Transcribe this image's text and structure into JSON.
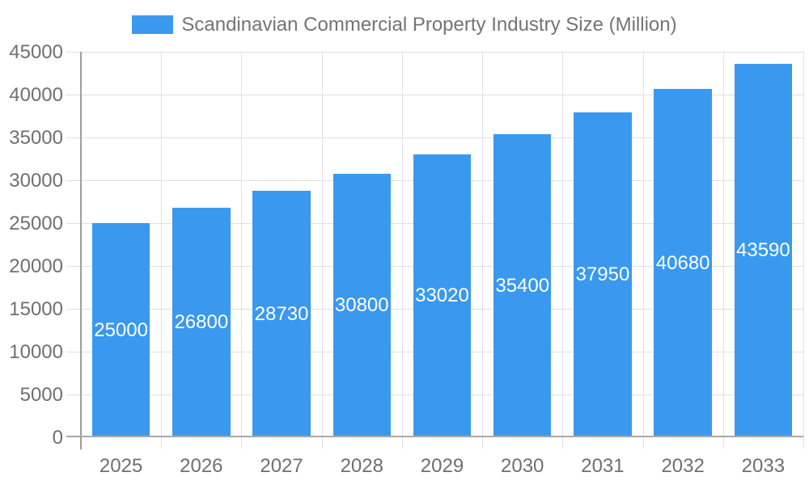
{
  "legend": {
    "label": "Scandinavian Commercial Property Industry Size (Million)"
  },
  "chart_data": {
    "type": "bar",
    "title": "Scandinavian Commercial Property Industry Size (Million)",
    "categories": [
      "2025",
      "2026",
      "2027",
      "2028",
      "2029",
      "2030",
      "2031",
      "2032",
      "2033"
    ],
    "values": [
      25000,
      26800,
      28730,
      30800,
      33020,
      35400,
      37950,
      40680,
      43590
    ],
    "series_name": "Scandinavian Commercial Property Industry Size (Million)",
    "xlabel": "",
    "ylabel": "",
    "ylim": [
      0,
      45000
    ],
    "ytick_step": 5000,
    "ytick_labels": [
      "0",
      "5000",
      "10000",
      "15000",
      "20000",
      "25000",
      "30000",
      "35000",
      "40000",
      "45000"
    ],
    "grid": true,
    "legend_position": "top",
    "value_labels": "inside-center"
  },
  "colors": {
    "background": "#FFFFFF",
    "bar": "#3A99EE",
    "value_label": "#FFFFFF",
    "grid": "#E0E0E0",
    "axis_line": "#9E9E9E",
    "baseline": "#A9A9A9",
    "tick_text": "#6F6F6F",
    "title_text": "#747474"
  }
}
